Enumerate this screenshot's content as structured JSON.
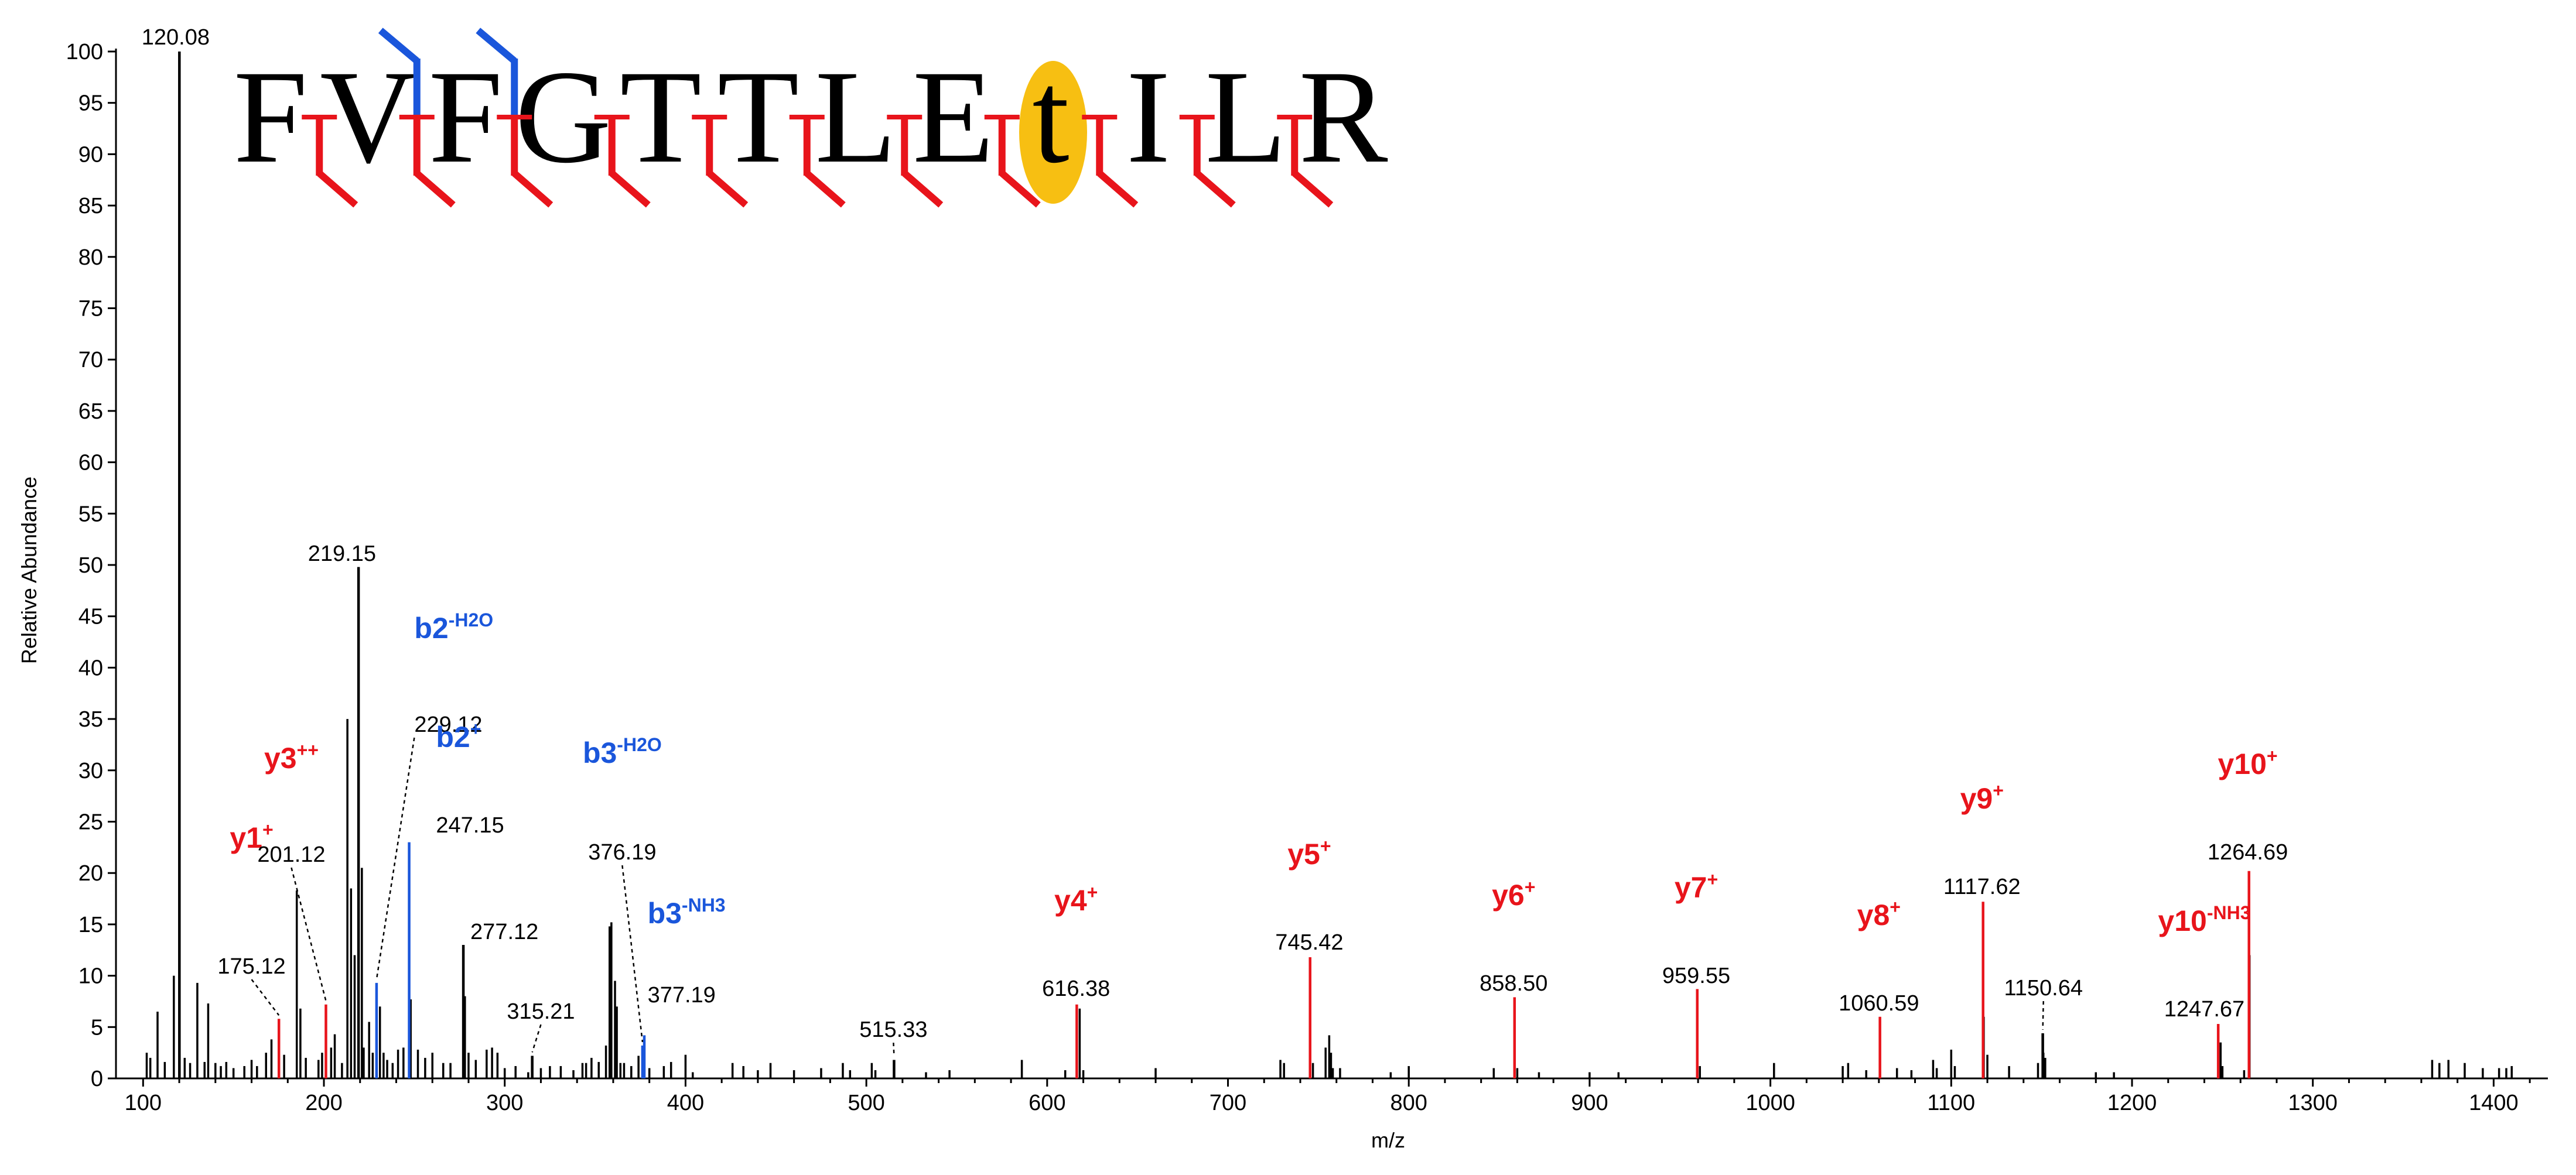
{
  "chart_data": {
    "type": "bar",
    "title": "",
    "xlabel": "m/z",
    "ylabel": "Relative Abundance",
    "xlim": [
      85,
      1430
    ],
    "ylim": [
      0,
      100
    ],
    "x_ticks": [
      "100",
      "200",
      "300",
      "400",
      "500",
      "600",
      "700",
      "800",
      "900",
      "1000",
      "1100",
      "1200",
      "1300",
      "1400"
    ],
    "y_ticks": [
      "0",
      "5",
      "10",
      "15",
      "20",
      "25",
      "30",
      "35",
      "40",
      "45",
      "50",
      "55",
      "60",
      "65",
      "70",
      "75",
      "80",
      "85",
      "90",
      "95",
      "100"
    ],
    "colors": {
      "default": "#000000",
      "y_ion": "#e8141b",
      "b_ion": "#1a56db",
      "highlight": "#f7bf12"
    },
    "labeled_peaks": [
      {
        "mz": 120.08,
        "intensity": 100,
        "label": "120.08",
        "color": "#000000"
      },
      {
        "mz": 175.12,
        "intensity": 5.8,
        "label": "175.12",
        "color": "#e8141b",
        "ion": "y1",
        "sup": "+",
        "leader": true
      },
      {
        "mz": 201.12,
        "intensity": 7.2,
        "label": "201.12",
        "color": "#e8141b",
        "ion": "y3",
        "sup": "++",
        "leader": true
      },
      {
        "mz": 219.15,
        "intensity": 49.8,
        "label": "219.15",
        "color": "#000000"
      },
      {
        "mz": 229.12,
        "intensity": 9.3,
        "label": "229.12",
        "color": "#1a56db",
        "ion": "b2",
        "sup": "-H2O",
        "leader": true
      },
      {
        "mz": 247.15,
        "intensity": 23,
        "label": "247.15",
        "color": "#1a56db",
        "ion": "b2",
        "sup": "+"
      },
      {
        "mz": 277.12,
        "intensity": 13,
        "label": "277.12",
        "color": "#000000"
      },
      {
        "mz": 315.21,
        "intensity": 2.2,
        "label": "315.21",
        "color": "#000000",
        "leader": true
      },
      {
        "mz": 376.19,
        "intensity": 3.2,
        "label": "376.19",
        "color": "#1a56db",
        "ion": "b3",
        "sup": "-H2O",
        "leader": true
      },
      {
        "mz": 377.19,
        "intensity": 4.2,
        "label": "377.19",
        "color": "#1a56db",
        "ion": "b3",
        "sup": "-NH3"
      },
      {
        "mz": 515.33,
        "intensity": 1.8,
        "label": "515.33",
        "color": "#000000",
        "leader": true
      },
      {
        "mz": 616.38,
        "intensity": 7.2,
        "label": "616.38",
        "color": "#e8141b",
        "ion": "y4",
        "sup": "+"
      },
      {
        "mz": 745.42,
        "intensity": 11.8,
        "label": "745.42",
        "color": "#e8141b",
        "ion": "y5",
        "sup": "+"
      },
      {
        "mz": 858.5,
        "intensity": 7.9,
        "label": "858.50",
        "color": "#e8141b",
        "ion": "y6",
        "sup": "+"
      },
      {
        "mz": 959.55,
        "intensity": 8.7,
        "label": "959.55",
        "color": "#e8141b",
        "ion": "y7",
        "sup": "+"
      },
      {
        "mz": 1060.59,
        "intensity": 6,
        "label": "1060.59",
        "color": "#e8141b",
        "ion": "y8",
        "sup": "+"
      },
      {
        "mz": 1117.62,
        "intensity": 17.2,
        "label": "1117.62",
        "color": "#e8141b",
        "ion": "y9",
        "sup": "+"
      },
      {
        "mz": 1150.64,
        "intensity": 4.4,
        "label": "1150.64",
        "color": "#000000",
        "leader": true
      },
      {
        "mz": 1247.67,
        "intensity": 5.3,
        "label": "1247.67",
        "color": "#e8141b",
        "ion": "y10",
        "sup": "-NH3"
      },
      {
        "mz": 1264.69,
        "intensity": 20.2,
        "label": "1264.69",
        "color": "#e8141b",
        "ion": "y10",
        "sup": "+"
      }
    ],
    "minor_peaks": [
      [
        102,
        2.5
      ],
      [
        104,
        2
      ],
      [
        108,
        6.5
      ],
      [
        112,
        1.6
      ],
      [
        117,
        10
      ],
      [
        123,
        2
      ],
      [
        126,
        1.5
      ],
      [
        130,
        9.3
      ],
      [
        134,
        1.6
      ],
      [
        136,
        7.3
      ],
      [
        140,
        1.5
      ],
      [
        143,
        1.2
      ],
      [
        146,
        1.6
      ],
      [
        150,
        1
      ],
      [
        156,
        1.2
      ],
      [
        160,
        1.8
      ],
      [
        163,
        1.2
      ],
      [
        168,
        2.5
      ],
      [
        171,
        3.8
      ],
      [
        178,
        2.3
      ],
      [
        185,
        18.3
      ],
      [
        187,
        6.8
      ],
      [
        190,
        2
      ],
      [
        197,
        1.8
      ],
      [
        199,
        2.5
      ],
      [
        204,
        3
      ],
      [
        206,
        4.3
      ],
      [
        210,
        1.5
      ],
      [
        213,
        35
      ],
      [
        215,
        18.5
      ],
      [
        217,
        12
      ],
      [
        221,
        20.5
      ],
      [
        222,
        3
      ],
      [
        225,
        5.5
      ],
      [
        227,
        2.5
      ],
      [
        231,
        7
      ],
      [
        233,
        2.5
      ],
      [
        235,
        1.8
      ],
      [
        238,
        1.5
      ],
      [
        241,
        2.8
      ],
      [
        244,
        3
      ],
      [
        248,
        7.7
      ],
      [
        252,
        2.8
      ],
      [
        256,
        2
      ],
      [
        260,
        2.5
      ],
      [
        266,
        1.5
      ],
      [
        270,
        1.5
      ],
      [
        278,
        8
      ],
      [
        280,
        2.5
      ],
      [
        284,
        1.8
      ],
      [
        290,
        2.8
      ],
      [
        293,
        3
      ],
      [
        296,
        2.5
      ],
      [
        300,
        1
      ],
      [
        306,
        1.2
      ],
      [
        313,
        0.6
      ],
      [
        320,
        1
      ],
      [
        325,
        1.2
      ],
      [
        331,
        1.2
      ],
      [
        338,
        0.8
      ],
      [
        343,
        1.5
      ],
      [
        345,
        1.5
      ],
      [
        348,
        2
      ],
      [
        352,
        1.6
      ],
      [
        356,
        3.2
      ],
      [
        358,
        14.8
      ],
      [
        359,
        15.2
      ],
      [
        361,
        9.5
      ],
      [
        362,
        7
      ],
      [
        364,
        1.5
      ],
      [
        366,
        1.5
      ],
      [
        370,
        1.2
      ],
      [
        374,
        2.2
      ],
      [
        380,
        1
      ],
      [
        388,
        1.2
      ],
      [
        392,
        1.6
      ],
      [
        400,
        2.3
      ],
      [
        404,
        0.6
      ],
      [
        426,
        1.5
      ],
      [
        432,
        1.2
      ],
      [
        440,
        0.8
      ],
      [
        447,
        1.5
      ],
      [
        460,
        0.8
      ],
      [
        475,
        1
      ],
      [
        487,
        1.5
      ],
      [
        491,
        0.8
      ],
      [
        503,
        1.5
      ],
      [
        505,
        0.8
      ],
      [
        533,
        0.6
      ],
      [
        546,
        0.8
      ],
      [
        586,
        1.8
      ],
      [
        610,
        0.8
      ],
      [
        618,
        6.8
      ],
      [
        620,
        0.8
      ],
      [
        660,
        1
      ],
      [
        729,
        1.8
      ],
      [
        731,
        1.5
      ],
      [
        747,
        1.5
      ],
      [
        754,
        3
      ],
      [
        756,
        4.2
      ],
      [
        757,
        2.5
      ],
      [
        758,
        1
      ],
      [
        762,
        1
      ],
      [
        790,
        0.6
      ],
      [
        800,
        1.2
      ],
      [
        847,
        1
      ],
      [
        860,
        1
      ],
      [
        872,
        0.6
      ],
      [
        900,
        0.6
      ],
      [
        916,
        0.6
      ],
      [
        961,
        1.2
      ],
      [
        1002,
        1.5
      ],
      [
        1040,
        1.2
      ],
      [
        1043,
        1.5
      ],
      [
        1053,
        0.8
      ],
      [
        1070,
        1
      ],
      [
        1078,
        0.8
      ],
      [
        1090,
        1.8
      ],
      [
        1092,
        1
      ],
      [
        1100,
        2.8
      ],
      [
        1102,
        1.2
      ],
      [
        1118,
        6
      ],
      [
        1120,
        2.3
      ],
      [
        1132,
        1.2
      ],
      [
        1148,
        1.5
      ],
      [
        1151,
        2.5
      ],
      [
        1152,
        2
      ],
      [
        1180,
        0.6
      ],
      [
        1190,
        0.6
      ],
      [
        1249,
        3.5
      ],
      [
        1250,
        1.2
      ],
      [
        1262,
        0.8
      ],
      [
        1265,
        12
      ],
      [
        1366,
        1.8
      ],
      [
        1370,
        1.5
      ],
      [
        1375,
        1.8
      ],
      [
        1384,
        1.5
      ],
      [
        1394,
        1
      ],
      [
        1403,
        1
      ],
      [
        1407,
        1
      ],
      [
        1410,
        1.2
      ]
    ],
    "sequence": {
      "letters": [
        "F",
        "V",
        "F",
        "G",
        "T",
        "T",
        "L",
        "E",
        "t",
        "I",
        "L",
        "R"
      ],
      "highlight_index": 8,
      "y_cleavages": [
        1,
        2,
        3,
        4,
        5,
        6,
        7,
        8,
        9,
        10,
        11
      ],
      "b_cleavages": [
        2,
        3
      ]
    }
  }
}
